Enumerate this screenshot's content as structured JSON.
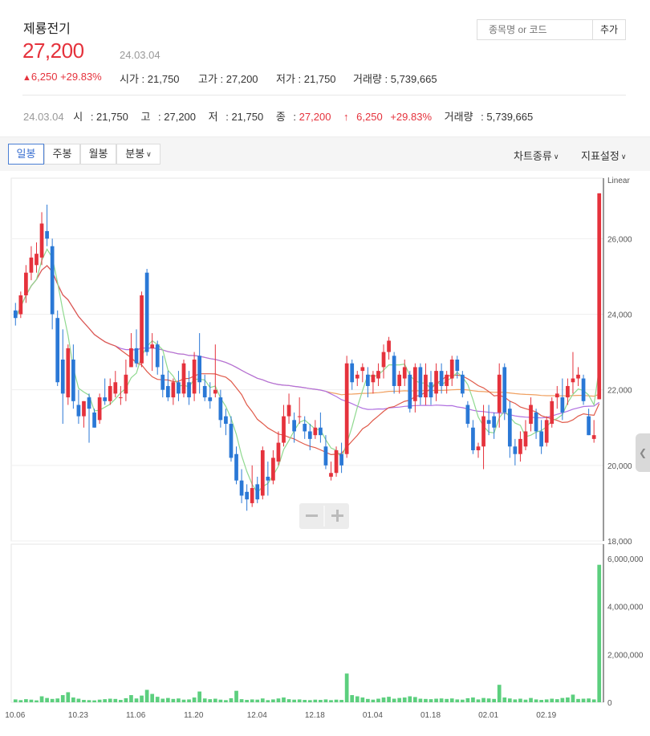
{
  "stock": {
    "name": "제룡전기",
    "price": "27,200",
    "date": "24.03.04",
    "change_arrow": "▲",
    "change": "6,250",
    "change_pct": "+29.83%",
    "open_label": "시가",
    "open": "21,750",
    "high_label": "고가",
    "high": "27,200",
    "low_label": "저가",
    "low": "21,750",
    "volume_label": "거래량",
    "volume": "5,739,665"
  },
  "search": {
    "placeholder": "종목명 or 코드",
    "add_label": "추가"
  },
  "summary": {
    "date": "24.03.04",
    "open_label": "시",
    "open": "21,750",
    "high_label": "고",
    "high": "27,200",
    "low_label": "저",
    "low": "21,750",
    "close_label": "종",
    "close": "27,200",
    "arrow": "↑",
    "change": "6,250",
    "change_pct": "+29.83%",
    "volume_label": "거래량",
    "volume": "5,739,665"
  },
  "toolbar": {
    "tabs": [
      "일봉",
      "주봉",
      "월봉",
      "분봉"
    ],
    "chart_type_label": "차트종류",
    "indicator_label": "지표설정"
  },
  "colors": {
    "up": "#e5323c",
    "down": "#2a78d6",
    "ma5": "#8fd98f",
    "ma20": "#e05a4a",
    "ma60": "#b070e0",
    "ma120": "#f0a060",
    "volume": "#5ccf7e"
  },
  "chart_data": {
    "type": "candlestick",
    "scale_label": "Linear",
    "price_ylim": [
      18000,
      27600
    ],
    "price_ticks": [
      18000,
      20000,
      22000,
      24000,
      26000
    ],
    "price_tick_labels": [
      "18,000",
      "20,000",
      "22,000",
      "24,000",
      "26,000"
    ],
    "volume_ylim": [
      0,
      6600000
    ],
    "volume_ticks": [
      0,
      2000000,
      4000000,
      6000000
    ],
    "volume_tick_labels": [
      "0",
      "2,000,000",
      "4,000,000",
      "6,000,000"
    ],
    "x_labels": [
      "10.06",
      "10.23",
      "11.06",
      "11.20",
      "12.04",
      "12.18",
      "01.04",
      "01.18",
      "02.01",
      "02.19"
    ],
    "x_label_index": [
      0,
      12,
      23,
      34,
      46,
      57,
      68,
      79,
      90,
      101
    ],
    "ohlc": [
      [
        24100,
        24300,
        23700,
        23900
      ],
      [
        24000,
        24600,
        23900,
        24500
      ],
      [
        24500,
        25300,
        24300,
        25100
      ],
      [
        25100,
        25800,
        24900,
        25500
      ],
      [
        25300,
        25900,
        25100,
        25600
      ],
      [
        25500,
        26700,
        25300,
        26400
      ],
      [
        26200,
        26900,
        25800,
        26000
      ],
      [
        25800,
        26000,
        23600,
        24000
      ],
      [
        23900,
        24100,
        22100,
        22200
      ],
      [
        22800,
        23600,
        21100,
        21900
      ],
      [
        21800,
        23200,
        21600,
        23100
      ],
      [
        22800,
        23200,
        21500,
        21700
      ],
      [
        21600,
        22000,
        21100,
        21300
      ],
      [
        21300,
        21700,
        21000,
        21700
      ],
      [
        21800,
        21900,
        20600,
        21500
      ],
      [
        21400,
        21500,
        21000,
        21000
      ],
      [
        21200,
        21900,
        21100,
        21800
      ],
      [
        21800,
        22300,
        21600,
        21700
      ],
      [
        21700,
        22300,
        21600,
        22100
      ],
      [
        21900,
        22500,
        21800,
        22200
      ],
      [
        21800,
        22100,
        21600,
        21800
      ],
      [
        21900,
        22800,
        21700,
        22400
      ],
      [
        22600,
        23500,
        22600,
        23100
      ],
      [
        23100,
        23600,
        22600,
        22700
      ],
      [
        22700,
        24600,
        22600,
        24500
      ],
      [
        25100,
        25200,
        22900,
        23000
      ],
      [
        23100,
        23500,
        22500,
        23200
      ],
      [
        23200,
        23300,
        22400,
        22600
      ],
      [
        22400,
        22900,
        21800,
        22000
      ],
      [
        22100,
        22500,
        21700,
        21800
      ],
      [
        21800,
        22300,
        21600,
        22200
      ],
      [
        22200,
        22500,
        21700,
        21900
      ],
      [
        21900,
        22800,
        21800,
        22700
      ],
      [
        22200,
        22500,
        21600,
        21800
      ],
      [
        21900,
        23000,
        21700,
        22800
      ],
      [
        22900,
        23500,
        21900,
        22200
      ],
      [
        22100,
        22400,
        21700,
        21800
      ],
      [
        21800,
        22200,
        21500,
        21700
      ],
      [
        21900,
        23200,
        21800,
        22000
      ],
      [
        21800,
        22000,
        21000,
        21200
      ],
      [
        21300,
        21500,
        20800,
        21100
      ],
      [
        21100,
        21300,
        20100,
        20200
      ],
      [
        20300,
        20500,
        19500,
        19600
      ],
      [
        19600,
        19900,
        19000,
        19200
      ],
      [
        19300,
        19500,
        18800,
        19100
      ],
      [
        19000,
        20000,
        18900,
        19400
      ],
      [
        19500,
        19700,
        19000,
        19100
      ],
      [
        19200,
        20500,
        19100,
        20400
      ],
      [
        19700,
        20100,
        19200,
        19600
      ],
      [
        19600,
        20400,
        19500,
        20200
      ],
      [
        20100,
        20900,
        20000,
        20600
      ],
      [
        20600,
        21600,
        20500,
        21300
      ],
      [
        21300,
        21900,
        21100,
        21600
      ],
      [
        21200,
        21400,
        20600,
        20900
      ],
      [
        21300,
        21800,
        21100,
        21300
      ],
      [
        21100,
        21300,
        20700,
        20900
      ],
      [
        20900,
        21100,
        20400,
        20700
      ],
      [
        20800,
        21200,
        20700,
        21000
      ],
      [
        21000,
        21400,
        20600,
        20800
      ],
      [
        20500,
        20800,
        19900,
        20000
      ],
      [
        19700,
        20100,
        19600,
        19800
      ],
      [
        19800,
        20500,
        19700,
        20400
      ],
      [
        20300,
        20600,
        19800,
        20000
      ],
      [
        20300,
        22900,
        20200,
        22700
      ],
      [
        22700,
        22800,
        22000,
        22200
      ],
      [
        22300,
        22500,
        22100,
        22400
      ],
      [
        22500,
        22700,
        22200,
        22600
      ],
      [
        22400,
        22600,
        21800,
        22100
      ],
      [
        22200,
        22500,
        21900,
        22400
      ],
      [
        22300,
        22700,
        22100,
        22500
      ],
      [
        22600,
        23200,
        22300,
        23000
      ],
      [
        23000,
        23400,
        22800,
        23300
      ],
      [
        22900,
        23000,
        21900,
        22100
      ],
      [
        22100,
        22500,
        21900,
        22400
      ],
      [
        22300,
        22800,
        22100,
        22600
      ],
      [
        22400,
        22500,
        21400,
        21500
      ],
      [
        21700,
        22700,
        21400,
        22600
      ],
      [
        22600,
        22700,
        21600,
        21800
      ],
      [
        21800,
        22700,
        21600,
        22400
      ],
      [
        22200,
        22500,
        21600,
        21800
      ],
      [
        21900,
        22700,
        21700,
        22500
      ],
      [
        22500,
        22700,
        21900,
        22100
      ],
      [
        22100,
        22500,
        21900,
        22400
      ],
      [
        22300,
        22900,
        22100,
        22800
      ],
      [
        22800,
        22900,
        22300,
        22500
      ],
      [
        22400,
        22500,
        21800,
        21900
      ],
      [
        21600,
        21700,
        21000,
        21100
      ],
      [
        21000,
        21200,
        20300,
        20400
      ],
      [
        20400,
        20600,
        20200,
        20500
      ],
      [
        20500,
        21600,
        19900,
        21300
      ],
      [
        21200,
        21600,
        20800,
        21100
      ],
      [
        21300,
        21400,
        20700,
        21000
      ],
      [
        21400,
        22700,
        21000,
        22400
      ],
      [
        22600,
        22700,
        21200,
        21400
      ],
      [
        21500,
        21700,
        20200,
        20500
      ],
      [
        20500,
        20700,
        20000,
        20300
      ],
      [
        20300,
        20900,
        20100,
        20700
      ],
      [
        20500,
        21200,
        20400,
        20900
      ],
      [
        21100,
        21800,
        20900,
        21600
      ],
      [
        21400,
        21500,
        20700,
        20900
      ],
      [
        20900,
        21200,
        20300,
        20500
      ],
      [
        20600,
        21300,
        20500,
        21200
      ],
      [
        21100,
        21800,
        21000,
        21700
      ],
      [
        21800,
        22100,
        21500,
        21900
      ],
      [
        21800,
        22300,
        21200,
        21400
      ],
      [
        21800,
        22300,
        21600,
        22100
      ],
      [
        22200,
        23000,
        21900,
        22300
      ],
      [
        22300,
        22600,
        22100,
        22400
      ],
      [
        22300,
        22400,
        21600,
        21700
      ],
      [
        21300,
        21500,
        20800,
        20800
      ],
      [
        20700,
        21200,
        20600,
        20800
      ],
      [
        21750,
        27200,
        21750,
        27200
      ]
    ],
    "volume": [
      120000,
      90000,
      130000,
      110000,
      80000,
      250000,
      180000,
      140000,
      160000,
      300000,
      420000,
      200000,
      150000,
      100000,
      90000,
      80000,
      110000,
      130000,
      150000,
      140000,
      100000,
      170000,
      300000,
      160000,
      280000,
      520000,
      350000,
      230000,
      150000,
      180000,
      140000,
      160000,
      110000,
      120000,
      200000,
      450000,
      160000,
      130000,
      150000,
      110000,
      90000,
      170000,
      480000,
      130000,
      100000,
      120000,
      110000,
      160000,
      90000,
      120000,
      160000,
      200000,
      130000,
      110000,
      120000,
      100000,
      90000,
      110000,
      100000,
      120000,
      90000,
      110000,
      100000,
      1200000,
      300000,
      250000,
      200000,
      140000,
      110000,
      150000,
      200000,
      230000,
      150000,
      180000,
      200000,
      250000,
      220000,
      150000,
      140000,
      130000,
      150000,
      160000,
      140000,
      160000,
      120000,
      110000,
      170000,
      200000,
      120000,
      180000,
      160000,
      140000,
      730000,
      200000,
      160000,
      120000,
      150000,
      110000,
      180000,
      120000,
      100000,
      120000,
      150000,
      130000,
      180000,
      200000,
      320000,
      140000,
      150000,
      160000,
      120000,
      5739665
    ]
  }
}
